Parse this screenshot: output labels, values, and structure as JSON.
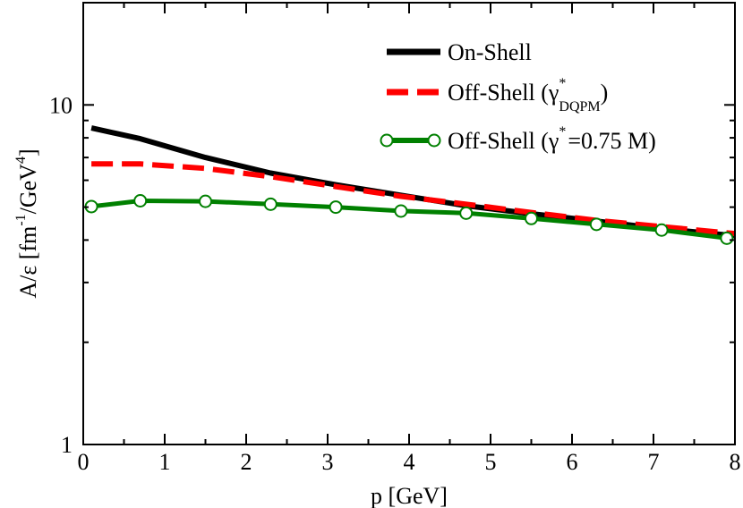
{
  "chart_data": {
    "type": "line",
    "title": "",
    "xlabel": "p [GeV]",
    "ylabel": {
      "prefix": "A/ε [fm",
      "sup1": "-1",
      "mid": "/GeV",
      "sup2": "4",
      "suffix": "]"
    },
    "xlim": [
      0,
      8
    ],
    "ylim": [
      1,
      20
    ],
    "yscale": "log",
    "x_ticks": [
      "0",
      "1",
      "2",
      "3",
      "4",
      "5",
      "6",
      "7",
      "8"
    ],
    "y_ticks": [
      {
        "value": 1,
        "label": "1"
      },
      {
        "value": 10,
        "label": "10"
      }
    ],
    "legend_position": "top-right",
    "series": [
      {
        "name": "On-Shell",
        "color": "#000000",
        "style": "solid",
        "marker": "none",
        "x": [
          0.1,
          0.7,
          1.5,
          2.3,
          3.1,
          3.9,
          4.7,
          5.5,
          6.3,
          7.1,
          7.9,
          8.0
        ],
        "y": [
          8.55,
          7.95,
          7.0,
          6.3,
          5.82,
          5.42,
          5.05,
          4.78,
          4.55,
          4.32,
          4.14,
          4.12
        ]
      },
      {
        "name": "Off-Shell",
        "legend": {
          "base": "Off-Shell (γ",
          "sup": "*",
          "sub": "DQPM",
          "close": ")"
        },
        "color": "#ff0000",
        "style": "dashed",
        "marker": "none",
        "x": [
          0.1,
          0.7,
          1.5,
          2.3,
          3.1,
          3.9,
          4.7,
          5.5,
          6.3,
          7.1,
          7.9,
          8.0
        ],
        "y": [
          6.7,
          6.7,
          6.5,
          6.15,
          5.75,
          5.38,
          5.1,
          4.82,
          4.57,
          4.38,
          4.2,
          4.18
        ]
      },
      {
        "name": "Off-Shell",
        "legend": {
          "base": "Off-Shell (γ",
          "sup": "*",
          "rest": "=0.75 M)"
        },
        "color": "#008000",
        "style": "solid",
        "marker": "open-circle",
        "x": [
          0.1,
          0.7,
          1.5,
          2.3,
          3.1,
          3.9,
          4.7,
          5.5,
          6.3,
          7.1,
          7.9
        ],
        "y": [
          5.02,
          5.22,
          5.2,
          5.1,
          5.0,
          4.87,
          4.8,
          4.63,
          4.45,
          4.28,
          4.05
        ]
      }
    ]
  }
}
